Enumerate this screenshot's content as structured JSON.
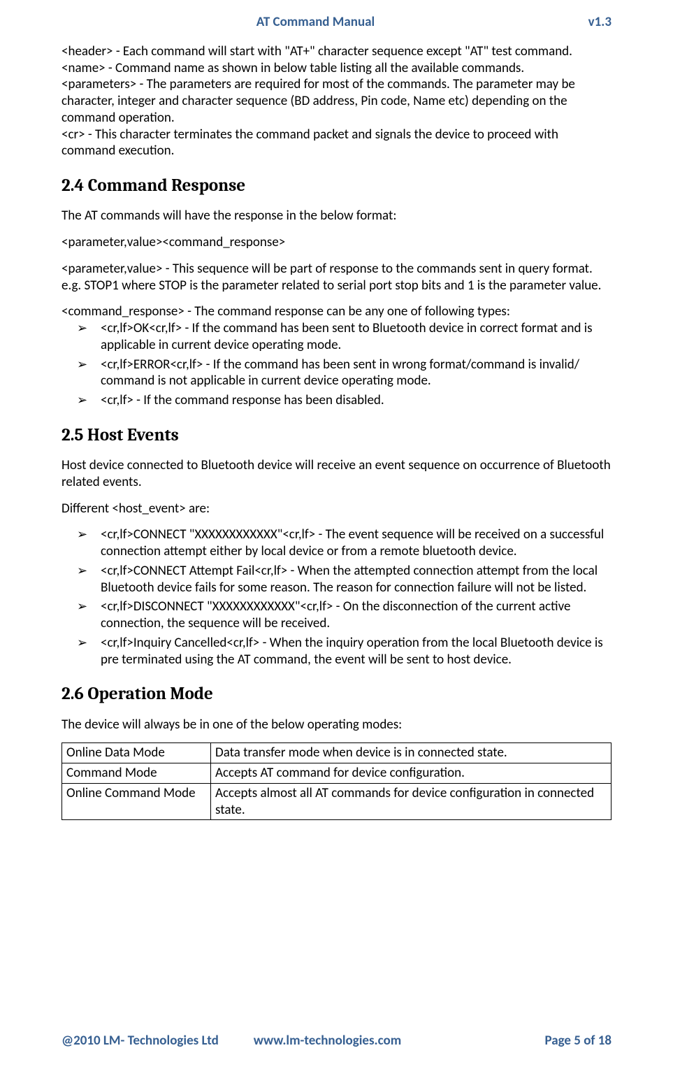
{
  "header": {
    "title": "AT Command Manual",
    "version": "v1.3"
  },
  "footer": {
    "left": "@2010 LM- Technologies Ltd",
    "center": "www.lm-technologies.com",
    "right": "Page 5 of 18"
  },
  "intro": {
    "p1": "<header> - Each command will start with \"AT+\" character sequence except \"AT\" test command.",
    "p2": "<name> - Command name as shown in below table listing all the available commands.",
    "p3": "<parameters> - The parameters are required for most of the commands. The parameter may be character, integer and character sequence (BD address, Pin code, Name etc) depending on the command operation.",
    "p4": "<cr> - This character terminates the command packet and signals the device to proceed with command execution."
  },
  "s24": {
    "heading": "2.4   Command Response",
    "p1": "The AT commands will have the response in the below format:",
    "p2": "<parameter,value><command_response>",
    "p3": "<parameter,value> - This sequence will be part of response to the commands sent in query format. e.g. STOP1 where STOP is the parameter related to serial port stop bits and 1 is the parameter value.",
    "p4": "<command_response> - The command response can be any one of following types:",
    "bullets": [
      "<cr,lf>OK<cr,lf> - If the command has been sent to Bluetooth device in correct format and is applicable in current device operating mode.",
      "<cr,lf>ERROR<cr,lf> - If the command has been sent in wrong format/command is invalid/ command   is not applicable in current device operating mode.",
      "<cr,lf>  - If the command response has been disabled."
    ]
  },
  "s25": {
    "heading": "2.5   Host Events",
    "p1": "Host device connected to Bluetooth device will receive an event sequence on occurrence of Bluetooth related events.",
    "p2": "Different <host_event> are:",
    "bullets": [
      "<cr,lf>CONNECT \"XXXXXXXXXXXX\"<cr,lf> - The event sequence will be received on a successful connection attempt either by local device or from a remote bluetooth device.",
      "<cr,lf>CONNECT Attempt Fail<cr,lf>  - When the attempted connection attempt from the local Bluetooth device fails for some reason.  The reason for connection failure will not be listed.",
      "<cr,lf>DISCONNECT \"XXXXXXXXXXXX\"<cr,lf> - On the disconnection of the current active connection, the sequence will be received.",
      "<cr,lf>Inquiry Cancelled<cr,lf> - When the inquiry operation from the local Bluetooth device is pre terminated using the AT command, the event will be sent to host device."
    ]
  },
  "s26": {
    "heading": "2.6   Operation Mode",
    "p1": "The device will always be in one of the below operating modes:",
    "table": {
      "rows": [
        [
          "Online Data Mode",
          "Data transfer mode when device is in connected state."
        ],
        [
          "Command Mode",
          "Accepts AT command for device configuration."
        ],
        [
          "Online Command Mode",
          "Accepts almost all AT commands for device configuration in connected state."
        ]
      ]
    }
  }
}
